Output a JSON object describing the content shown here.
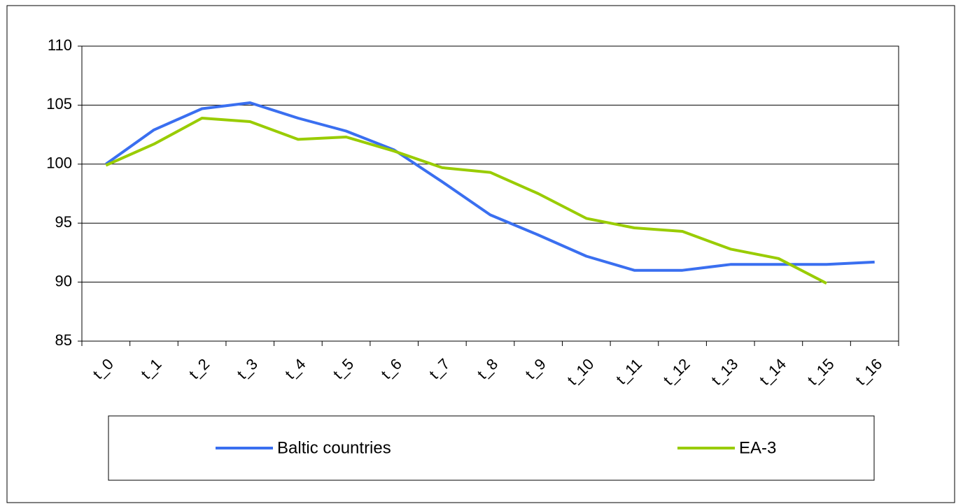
{
  "chart_data": {
    "type": "line",
    "categories": [
      "t_0",
      "t_1",
      "t_2",
      "t_3",
      "t_4",
      "t_5",
      "t_6",
      "t_7",
      "t_8",
      "t_9",
      "t_10",
      "t_11",
      "t_12",
      "t_13",
      "t_14",
      "t_15",
      "t_16"
    ],
    "series": [
      {
        "name": "Baltic countries",
        "color": "#3a6ff0",
        "values": [
          100,
          102.9,
          104.7,
          105.2,
          103.9,
          102.8,
          101.2,
          98.5,
          95.7,
          94.0,
          92.2,
          91.0,
          91.0,
          91.5,
          91.5,
          91.5,
          91.7
        ]
      },
      {
        "name": "EA-3",
        "color": "#99cc00",
        "values": [
          99.9,
          101.7,
          103.9,
          103.6,
          102.1,
          102.3,
          101.1,
          99.7,
          99.3,
          97.5,
          95.4,
          94.6,
          94.3,
          92.8,
          92.0,
          89.9,
          null
        ]
      }
    ],
    "ylim": [
      85,
      110
    ],
    "yticks": [
      85,
      90,
      95,
      100,
      105,
      110
    ],
    "grid": true,
    "legend": "bottom"
  }
}
